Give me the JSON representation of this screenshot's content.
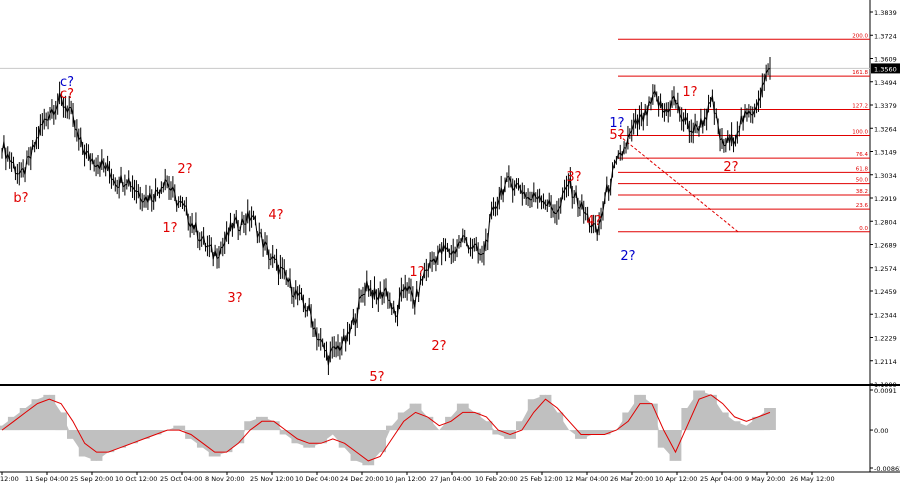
{
  "chart_data": {
    "type": "line",
    "title": "",
    "xlabel": "",
    "ylabel": "",
    "ylim": [
      1.1999,
      1.3839
    ],
    "y_ticks": [
      "1.3839",
      "1.3724",
      "1.3609",
      "1.3494",
      "1.3379",
      "1.3264",
      "1.3149",
      "1.3034",
      "1.2919",
      "1.2804",
      "1.2689",
      "1.2574",
      "1.2459",
      "1.2344",
      "1.2229",
      "1.2114",
      "1.1999"
    ],
    "current_price": "1.3560",
    "x_ticks": [
      "12:00",
      "11 Sep 04:00",
      "25 Sep 20:00",
      "10 Oct 12:00",
      "25 Oct 04:00",
      "8 Nov 20:00",
      "25 Nov 12:00",
      "10 Dec 04:00",
      "24 Dec 20:00",
      "10 Jan 12:00",
      "27 Jan 04:00",
      "10 Feb 20:00",
      "25 Feb 12:00",
      "12 Mar 04:00",
      "26 Mar 20:00",
      "10 Apr 12:00",
      "25 Apr 04:00",
      "9 May 20:00",
      "26 May 12:00"
    ],
    "series": [
      {
        "values": [
          1.318,
          1.31,
          1.302,
          1.312,
          1.326,
          1.335,
          1.34,
          1.336,
          1.32,
          1.312,
          1.31,
          1.306,
          1.3,
          1.302,
          1.296,
          1.292,
          1.294,
          1.302,
          1.292,
          1.286,
          1.278,
          1.27,
          1.264,
          1.268,
          1.278,
          1.28,
          1.283,
          1.272,
          1.262,
          1.256,
          1.249,
          1.242,
          1.236,
          1.222,
          1.213,
          1.218,
          1.222,
          1.236,
          1.25,
          1.242,
          1.247,
          1.232,
          1.25,
          1.24,
          1.255,
          1.262,
          1.266,
          1.265,
          1.272,
          1.268,
          1.262,
          1.282,
          1.296,
          1.3,
          1.297,
          1.291,
          1.294,
          1.288,
          1.285,
          1.3,
          1.29,
          1.282,
          1.274,
          1.295,
          1.308,
          1.318,
          1.328,
          1.332,
          1.342,
          1.334,
          1.341,
          1.33,
          1.325,
          1.33,
          1.339,
          1.318,
          1.32,
          1.33,
          1.333,
          1.344,
          1.356
        ]
      }
    ],
    "fibonacci_levels": [
      {
        "label": "200.0",
        "value": 1.3704
      },
      {
        "label": "161.8",
        "value": 1.3522
      },
      {
        "label": "127.2",
        "value": 1.3357
      },
      {
        "label": "100.0",
        "value": 1.3228
      },
      {
        "label": "76.4",
        "value": 1.3116
      },
      {
        "label": "61.8",
        "value": 1.3046
      },
      {
        "label": "50.0",
        "value": 1.299
      },
      {
        "label": "38.2",
        "value": 1.2934
      },
      {
        "label": "23.6",
        "value": 1.2864
      },
      {
        "label": "0.0",
        "value": 1.2752
      }
    ],
    "wave_labels": [
      {
        "text": "c?",
        "color": "#0000cc"
      },
      {
        "text": "c?",
        "color": "#e00000"
      },
      {
        "text": "b?",
        "color": "#e00000"
      },
      {
        "text": "1?",
        "color": "#e00000"
      },
      {
        "text": "2?",
        "color": "#e00000"
      },
      {
        "text": "3?",
        "color": "#e00000"
      },
      {
        "text": "4?",
        "color": "#e00000"
      },
      {
        "text": "5?",
        "color": "#e00000"
      },
      {
        "text": "1?",
        "color": "#e00000"
      },
      {
        "text": "2?",
        "color": "#e00000"
      },
      {
        "text": "3?",
        "color": "#e00000"
      },
      {
        "text": "4?",
        "color": "#e00000"
      },
      {
        "text": "1?",
        "color": "#0000cc"
      },
      {
        "text": "5?",
        "color": "#e00000"
      },
      {
        "text": "2?",
        "color": "#0000cc"
      },
      {
        "text": "1?",
        "color": "#e00000"
      },
      {
        "text": "2?",
        "color": "#e00000"
      }
    ],
    "oscillator": {
      "type": "area",
      "y_ticks": [
        "0.0091",
        "0.00",
        "-0.00862"
      ],
      "ylim": [
        -0.00862,
        0.0091
      ],
      "histogram": [
        0.001,
        0.003,
        0.005,
        0.007,
        0.008,
        0.004,
        -0.002,
        -0.006,
        -0.007,
        -0.005,
        -0.004,
        -0.003,
        -0.002,
        -0.001,
        0.0,
        0.001,
        -0.002,
        -0.004,
        -0.006,
        -0.005,
        -0.003,
        0.002,
        0.003,
        0.002,
        -0.001,
        -0.003,
        -0.004,
        -0.003,
        -0.001,
        -0.004,
        -0.007,
        -0.008,
        -0.005,
        0.001,
        0.004,
        0.006,
        0.003,
        0.0,
        0.003,
        0.006,
        0.004,
        0.002,
        -0.001,
        -0.002,
        0.002,
        0.007,
        0.008,
        0.004,
        0.0,
        -0.002,
        -0.001,
        -0.001,
        0.0,
        0.004,
        0.008,
        0.006,
        -0.004,
        -0.007,
        0.005,
        0.009,
        0.008,
        0.004,
        0.002,
        0.001,
        0.003,
        0.005
      ],
      "signal": [
        0.0,
        0.002,
        0.004,
        0.006,
        0.007,
        0.006,
        0.002,
        -0.003,
        -0.005,
        -0.005,
        -0.004,
        -0.003,
        -0.002,
        -0.001,
        0.0,
        0.0,
        -0.001,
        -0.003,
        -0.005,
        -0.005,
        -0.003,
        0.0,
        0.002,
        0.002,
        0.0,
        -0.002,
        -0.003,
        -0.003,
        -0.002,
        -0.003,
        -0.005,
        -0.007,
        -0.006,
        -0.002,
        0.002,
        0.004,
        0.003,
        0.001,
        0.002,
        0.004,
        0.004,
        0.003,
        0.0,
        -0.001,
        0.0,
        0.004,
        0.007,
        0.005,
        0.002,
        -0.001,
        -0.001,
        -0.001,
        0.0,
        0.002,
        0.006,
        0.006,
        0.0,
        -0.005,
        0.001,
        0.007,
        0.008,
        0.006,
        0.003,
        0.002,
        0.003,
        0.004
      ]
    },
    "colors": {
      "price": "#000000",
      "fib_line": "#e00000",
      "fib_label": "#e00000",
      "histogram": "#c0c0c0",
      "signal": "#e00000",
      "wave_red": "#e00000",
      "wave_blue": "#0000cc",
      "current_price_bg": "#000000",
      "current_price_text": "#ffffff"
    },
    "grid": false
  }
}
